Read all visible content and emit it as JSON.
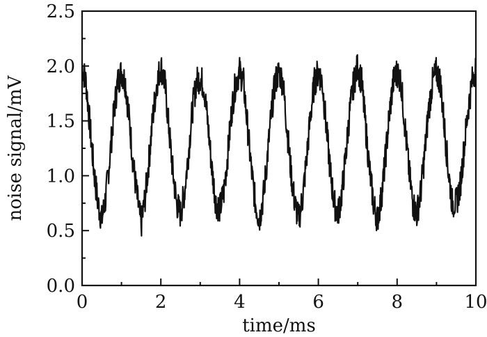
{
  "chart_data": {
    "type": "line",
    "title": "",
    "xlabel": "time/ms",
    "ylabel": "noise signal/mV",
    "xlim": [
      0,
      10
    ],
    "ylim": [
      0.0,
      2.5
    ],
    "x_ticks": [
      "0",
      "2",
      "4",
      "6",
      "8",
      "10"
    ],
    "x_tick_values": [
      0,
      2,
      4,
      6,
      8,
      10
    ],
    "y_ticks": [
      "0.0",
      "0.5",
      "1.0",
      "1.5",
      "2.0",
      "2.5"
    ],
    "y_tick_values": [
      0.0,
      0.5,
      1.0,
      1.5,
      2.0,
      2.5
    ],
    "grid": false,
    "legend": "none",
    "line_color": "#111111",
    "series": [
      {
        "x": [
          0,
          0.1,
          0.2,
          0.3,
          0.4,
          0.5,
          0.6,
          0.7,
          0.8,
          0.9,
          1.0,
          1.1,
          1.2,
          1.3,
          1.4,
          1.5,
          1.6,
          1.7,
          1.8,
          1.9,
          2.0,
          2.1,
          2.2,
          2.3,
          2.4,
          2.5,
          2.6,
          2.7,
          2.8,
          2.9,
          3.0,
          3.1,
          3.2,
          3.3,
          3.4,
          3.5,
          3.6,
          3.7,
          3.8,
          3.9,
          4.0,
          4.1,
          4.2,
          4.3,
          4.4,
          4.5,
          4.6,
          4.7,
          4.8,
          4.9,
          5.0,
          5.1,
          5.2,
          5.3,
          5.4,
          5.5,
          5.6,
          5.7,
          5.8,
          5.9,
          6.0,
          6.1,
          6.2,
          6.3,
          6.4,
          6.5,
          6.6,
          6.7,
          6.8,
          6.9,
          7.0,
          7.1,
          7.2,
          7.3,
          7.4,
          7.5,
          7.6,
          7.7,
          7.8,
          7.9,
          8.0,
          8.1,
          8.2,
          8.3,
          8.4,
          8.5,
          8.6,
          8.7,
          8.8,
          8.9,
          9.0,
          9.1,
          9.2,
          9.3,
          9.4,
          9.5,
          9.6,
          9.7,
          9.8,
          9.9,
          10.0
        ],
        "values": [
          2.0,
          1.85,
          1.45,
          1.05,
          0.75,
          0.6,
          0.8,
          1.15,
          1.55,
          1.85,
          1.95,
          1.85,
          1.5,
          1.1,
          0.8,
          0.55,
          0.8,
          1.15,
          1.55,
          1.85,
          2.0,
          1.85,
          1.45,
          1.05,
          0.75,
          0.65,
          0.85,
          1.2,
          1.6,
          1.85,
          1.9,
          1.8,
          1.45,
          1.05,
          0.75,
          0.7,
          0.85,
          1.2,
          1.6,
          1.85,
          1.95,
          1.85,
          1.45,
          1.05,
          0.75,
          0.6,
          0.8,
          1.15,
          1.55,
          1.85,
          1.95,
          1.85,
          1.45,
          1.05,
          0.75,
          0.6,
          0.8,
          1.15,
          1.55,
          1.85,
          1.95,
          1.85,
          1.45,
          1.05,
          0.75,
          0.65,
          0.85,
          1.2,
          1.6,
          1.85,
          2.0,
          1.85,
          1.45,
          1.05,
          0.75,
          0.6,
          0.8,
          1.15,
          1.55,
          1.85,
          1.95,
          1.85,
          1.45,
          1.05,
          0.75,
          0.65,
          0.85,
          1.2,
          1.6,
          1.85,
          1.95,
          1.85,
          1.45,
          1.05,
          0.75,
          0.75,
          0.9,
          1.25,
          1.6,
          1.85,
          2.0
        ]
      }
    ]
  }
}
